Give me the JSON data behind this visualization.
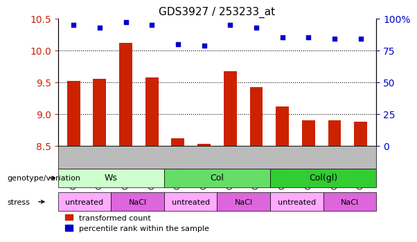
{
  "title": "GDS3927 / 253233_at",
  "samples": [
    "GSM420232",
    "GSM420233",
    "GSM420234",
    "GSM420235",
    "GSM420236",
    "GSM420237",
    "GSM420238",
    "GSM420239",
    "GSM420240",
    "GSM420241",
    "GSM420242",
    "GSM420243"
  ],
  "bar_values": [
    9.52,
    9.55,
    10.12,
    9.58,
    8.62,
    8.53,
    9.67,
    9.42,
    9.12,
    8.9,
    8.9,
    8.88
  ],
  "dot_values": [
    95,
    93,
    97,
    95,
    80,
    79,
    95,
    93,
    85,
    85,
    84,
    84
  ],
  "ylim_left": [
    8.5,
    10.5
  ],
  "ylim_right": [
    0,
    100
  ],
  "yticks_left": [
    8.5,
    9.0,
    9.5,
    10.0,
    10.5
  ],
  "yticks_right": [
    0,
    25,
    50,
    75,
    100
  ],
  "bar_color": "#cc2200",
  "dot_color": "#0000cc",
  "bg_color": "#cccccc",
  "genotype_groups": [
    {
      "label": "Ws",
      "start": 0,
      "end": 4,
      "color": "#ccffcc"
    },
    {
      "label": "Col",
      "start": 4,
      "end": 8,
      "color": "#66dd66"
    },
    {
      "label": "Col(gl)",
      "start": 8,
      "end": 12,
      "color": "#33cc33"
    }
  ],
  "stress_groups": [
    {
      "label": "untreated",
      "start": 0,
      "end": 2,
      "color": "#ffaaff"
    },
    {
      "label": "NaCl",
      "start": 2,
      "end": 4,
      "color": "#dd66dd"
    },
    {
      "label": "untreated",
      "start": 4,
      "end": 6,
      "color": "#ffaaff"
    },
    {
      "label": "NaCl",
      "start": 6,
      "end": 8,
      "color": "#dd66dd"
    },
    {
      "label": "untreated",
      "start": 8,
      "end": 10,
      "color": "#ffaaff"
    },
    {
      "label": "NaCl",
      "start": 10,
      "end": 12,
      "color": "#dd66dd"
    }
  ],
  "legend_bar_label": "transformed count",
  "legend_dot_label": "percentile rank within the sample",
  "genotype_label": "genotype/variation",
  "stress_label": "stress"
}
